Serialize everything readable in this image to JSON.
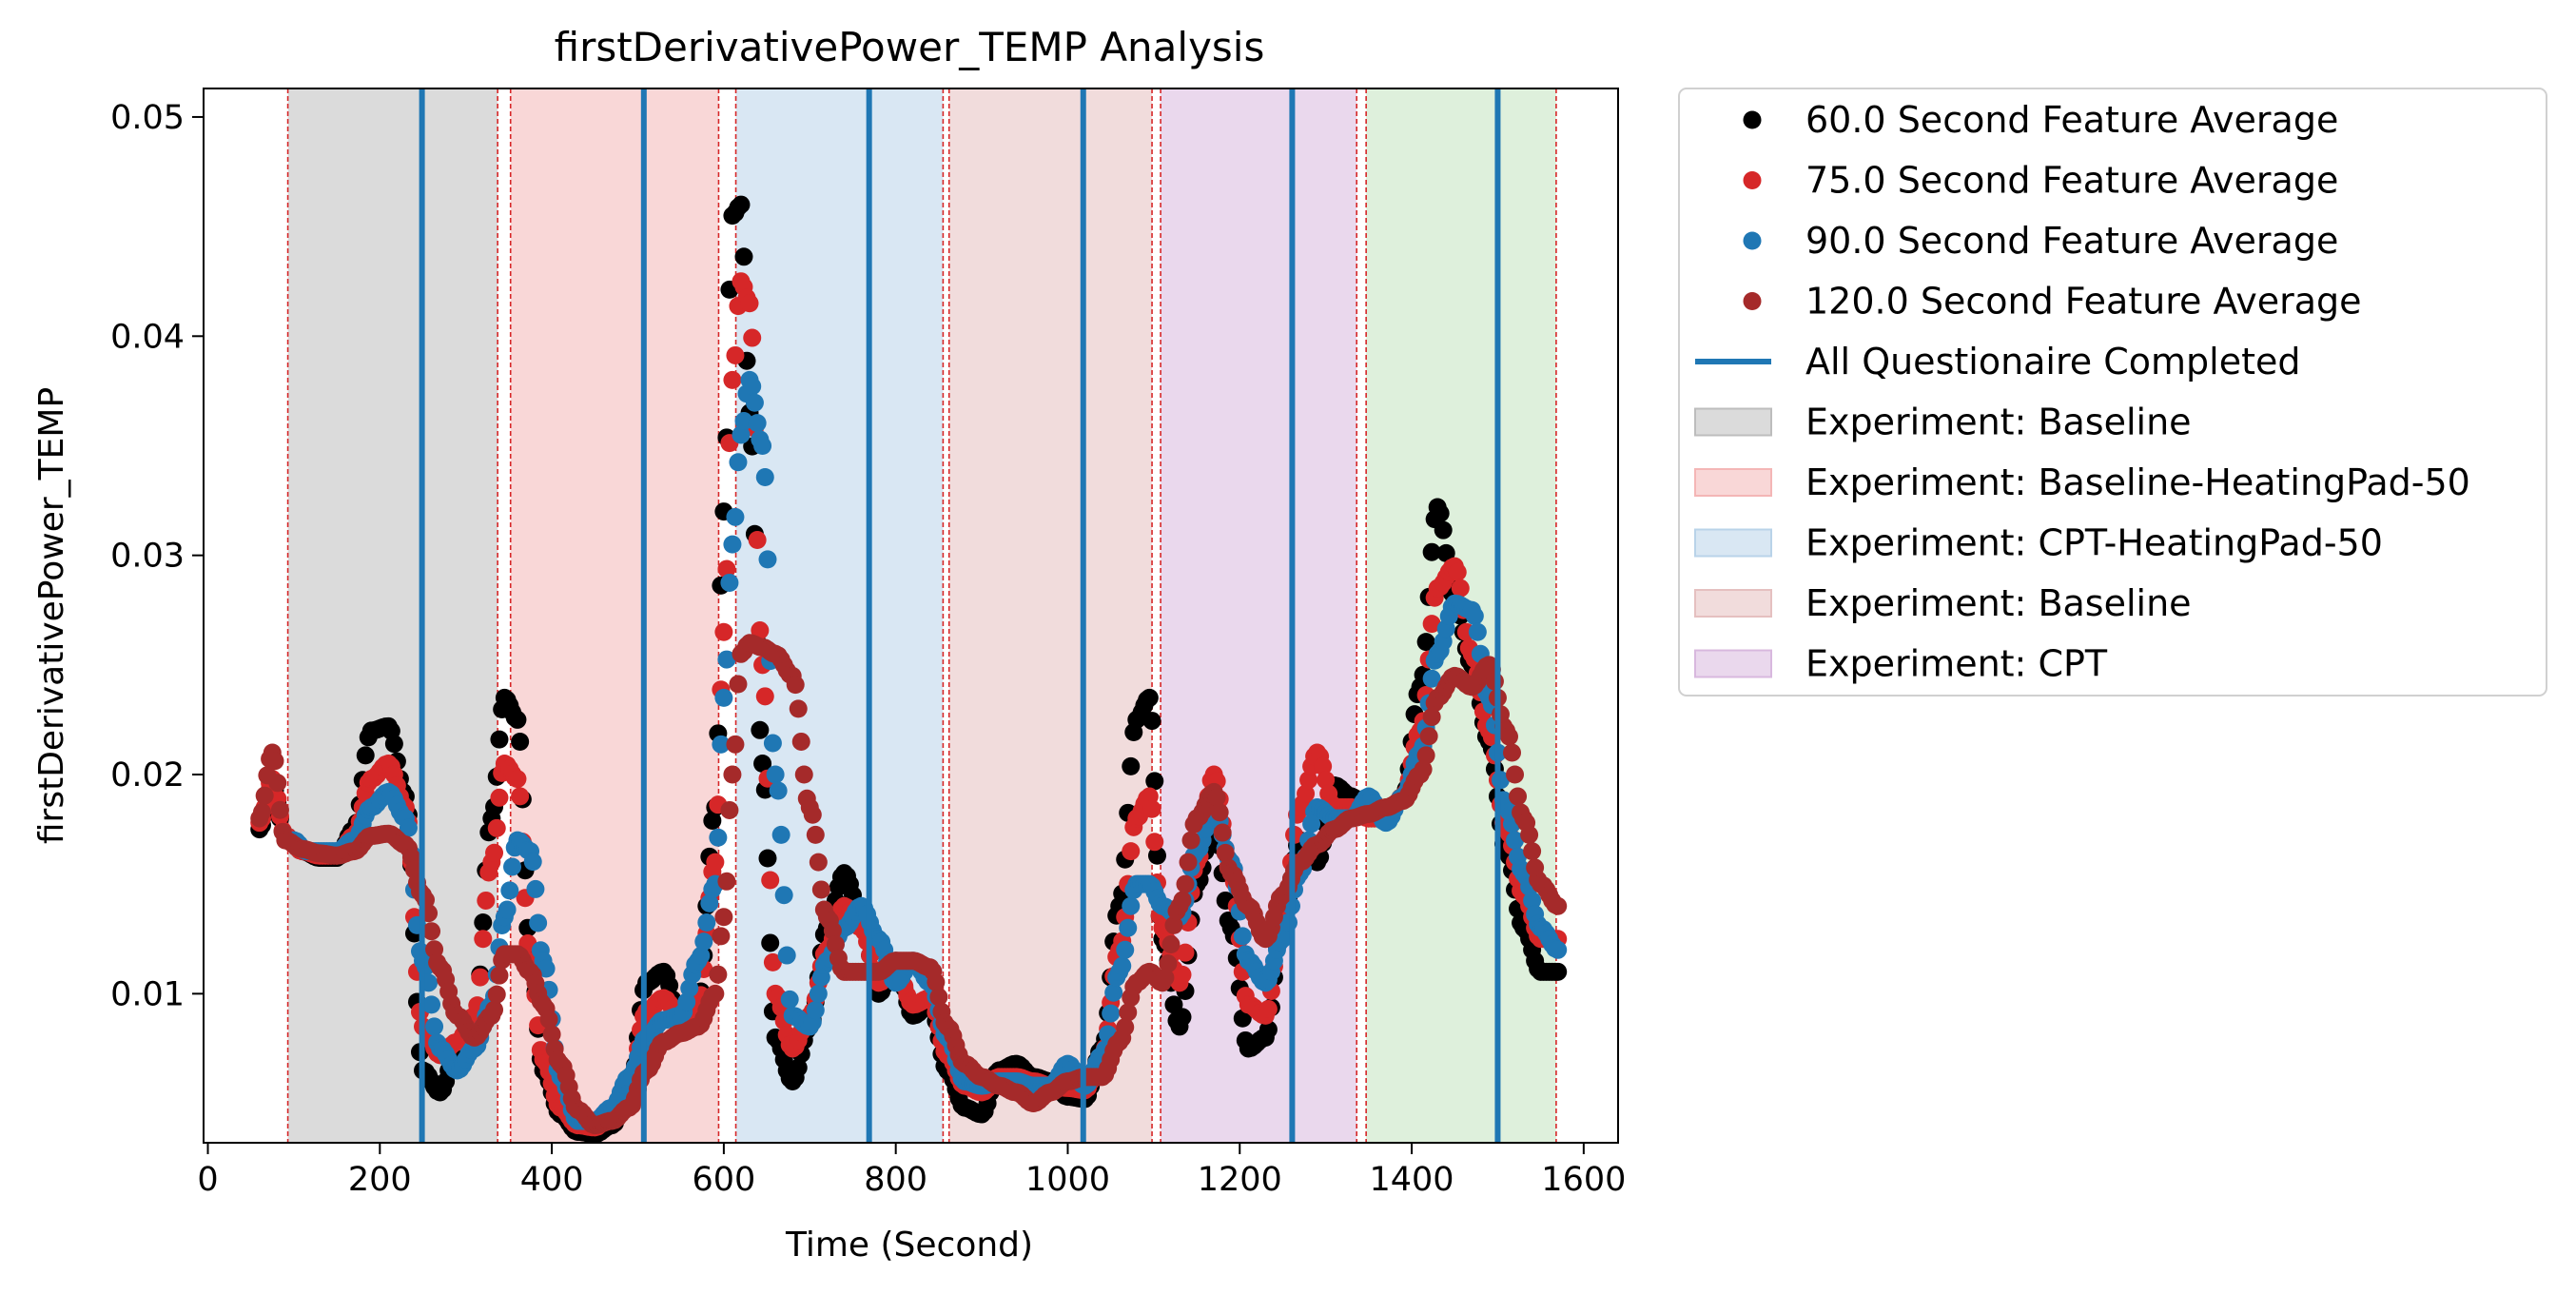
{
  "chart_data": {
    "type": "scatter",
    "title": "firstDerivativePower_TEMP Analysis",
    "xlabel": "Time (Second)",
    "ylabel": "firstDerivativePower_TEMP",
    "xlim": [
      -5,
      1640
    ],
    "ylim": [
      0.0032,
      0.0513
    ],
    "xticks": [
      0,
      200,
      400,
      600,
      800,
      1000,
      1200,
      1400,
      1600
    ],
    "xtick_labels": [
      "0",
      "200",
      "400",
      "600",
      "800",
      "1000",
      "1200",
      "1400",
      "1600"
    ],
    "yticks": [
      0.01,
      0.02,
      0.03,
      0.04,
      0.05
    ],
    "ytick_labels": [
      "0.01",
      "0.02",
      "0.03",
      "0.04",
      "0.05"
    ],
    "grid": false,
    "legend_position": "outside-right-top",
    "experiment_regions": [
      {
        "name": "Experiment: Baseline",
        "start": 93,
        "end": 337,
        "color": "#bdbdbd"
      },
      {
        "name": "Experiment: Baseline-HeatingPad-50",
        "start": 352,
        "end": 594,
        "color": "#f4b6b6"
      },
      {
        "name": "Experiment: CPT-HeatingPad-50",
        "start": 614,
        "end": 855,
        "color": "#b9d3e9"
      },
      {
        "name": "Experiment: Baseline",
        "start": 862,
        "end": 1098,
        "color": "#e5c0c0"
      },
      {
        "name": "Experiment: CPT",
        "start": 1108,
        "end": 1336,
        "color": "#d8b8de"
      },
      {
        "name": "",
        "start": 1347,
        "end": 1568,
        "color": "#c2e3c0"
      }
    ],
    "questionnaire_lines": {
      "name": "All Questionaire Completed",
      "color": "#1f77b4",
      "x": [
        249,
        507,
        769,
        1018,
        1261,
        1500
      ]
    },
    "boundary_lines_x": [
      93,
      337,
      352,
      594,
      614,
      855,
      862,
      1098,
      1108,
      1336,
      1347,
      1568
    ],
    "series": [
      {
        "name": "60.0 Second Feature Average",
        "color": "#000000",
        "x": [
          60,
          75,
          90,
          110,
          130,
          150,
          170,
          190,
          210,
          230,
          250,
          270,
          290,
          310,
          330,
          345,
          360,
          375,
          390,
          410,
          430,
          450,
          470,
          490,
          510,
          530,
          550,
          570,
          590,
          600,
          610,
          620,
          630,
          645,
          660,
          680,
          700,
          720,
          740,
          760,
          780,
          800,
          820,
          840,
          860,
          880,
          900,
          920,
          940,
          960,
          980,
          1000,
          1020,
          1040,
          1060,
          1080,
          1095,
          1110,
          1130,
          1150,
          1170,
          1190,
          1210,
          1230,
          1250,
          1270,
          1290,
          1310,
          1330,
          1350,
          1370,
          1390,
          1410,
          1430,
          1450,
          1470,
          1490,
          1510,
          1530,
          1550,
          1570
        ],
        "y": [
          0.0175,
          0.0195,
          0.0172,
          0.0165,
          0.0162,
          0.0162,
          0.0175,
          0.022,
          0.0222,
          0.019,
          0.0065,
          0.0055,
          0.0075,
          0.0085,
          0.018,
          0.0235,
          0.0225,
          0.012,
          0.0065,
          0.0045,
          0.0037,
          0.0036,
          0.004,
          0.0055,
          0.0105,
          0.011,
          0.0085,
          0.0095,
          0.0185,
          0.032,
          0.0455,
          0.046,
          0.0365,
          0.0205,
          0.008,
          0.006,
          0.0085,
          0.013,
          0.0155,
          0.0135,
          0.01,
          0.0115,
          0.009,
          0.0095,
          0.0065,
          0.0048,
          0.0045,
          0.0065,
          0.0068,
          0.0062,
          0.006,
          0.0053,
          0.0052,
          0.0075,
          0.014,
          0.0225,
          0.0235,
          0.0125,
          0.0085,
          0.015,
          0.018,
          0.013,
          0.0075,
          0.008,
          0.0135,
          0.017,
          0.016,
          0.0195,
          0.019,
          0.018,
          0.018,
          0.019,
          0.024,
          0.0322,
          0.028,
          0.025,
          0.0215,
          0.0165,
          0.013,
          0.011,
          0.011
        ]
      },
      {
        "name": "75.0 Second Feature Average",
        "color": "#d62728",
        "x": [
          60,
          75,
          90,
          110,
          130,
          150,
          170,
          190,
          210,
          230,
          250,
          270,
          290,
          310,
          330,
          345,
          360,
          375,
          390,
          410,
          430,
          450,
          470,
          490,
          510,
          530,
          550,
          570,
          590,
          600,
          610,
          620,
          630,
          645,
          660,
          680,
          700,
          720,
          740,
          760,
          780,
          800,
          820,
          840,
          860,
          880,
          900,
          920,
          940,
          960,
          980,
          1000,
          1020,
          1040,
          1060,
          1080,
          1095,
          1110,
          1130,
          1150,
          1170,
          1190,
          1210,
          1230,
          1250,
          1270,
          1290,
          1310,
          1330,
          1350,
          1370,
          1390,
          1410,
          1430,
          1450,
          1470,
          1490,
          1510,
          1530,
          1550,
          1570
        ],
        "y": [
          0.0178,
          0.0198,
          0.0172,
          0.0165,
          0.0163,
          0.0163,
          0.0172,
          0.0198,
          0.0205,
          0.0185,
          0.0085,
          0.0072,
          0.0078,
          0.009,
          0.016,
          0.0205,
          0.0198,
          0.0115,
          0.007,
          0.0048,
          0.004,
          0.0039,
          0.0045,
          0.0058,
          0.0092,
          0.0098,
          0.0088,
          0.0095,
          0.016,
          0.0265,
          0.038,
          0.0425,
          0.0415,
          0.025,
          0.01,
          0.0075,
          0.009,
          0.012,
          0.014,
          0.013,
          0.0105,
          0.0112,
          0.0095,
          0.0098,
          0.0072,
          0.0058,
          0.0055,
          0.0062,
          0.0062,
          0.006,
          0.0058,
          0.0057,
          0.0056,
          0.0072,
          0.012,
          0.018,
          0.019,
          0.013,
          0.0105,
          0.016,
          0.02,
          0.0155,
          0.0095,
          0.009,
          0.0135,
          0.0185,
          0.021,
          0.0185,
          0.0185,
          0.018,
          0.018,
          0.019,
          0.022,
          0.0285,
          0.0295,
          0.0255,
          0.022,
          0.0175,
          0.0145,
          0.0125,
          0.0125
        ]
      },
      {
        "name": "90.0 Second Feature Average",
        "color": "#1f77b4",
        "x": [
          100,
          115,
          130,
          150,
          170,
          190,
          210,
          230,
          250,
          270,
          290,
          310,
          330,
          345,
          360,
          375,
          390,
          410,
          430,
          450,
          470,
          490,
          510,
          530,
          550,
          570,
          590,
          600,
          610,
          620,
          630,
          645,
          660,
          680,
          700,
          720,
          740,
          760,
          780,
          800,
          820,
          840,
          860,
          880,
          900,
          920,
          940,
          960,
          980,
          1000,
          1020,
          1040,
          1060,
          1080,
          1095,
          1110,
          1130,
          1150,
          1170,
          1190,
          1210,
          1230,
          1250,
          1270,
          1290,
          1310,
          1330,
          1350,
          1370,
          1390,
          1410,
          1430,
          1450,
          1470,
          1490,
          1510,
          1530,
          1550,
          1570
        ],
        "y": [
          0.017,
          0.0165,
          0.0165,
          0.0165,
          0.017,
          0.0185,
          0.0192,
          0.018,
          0.0115,
          0.0075,
          0.0065,
          0.0075,
          0.0095,
          0.0135,
          0.017,
          0.0165,
          0.0115,
          0.0062,
          0.0042,
          0.0042,
          0.0048,
          0.0062,
          0.008,
          0.0088,
          0.009,
          0.0115,
          0.015,
          0.0235,
          0.0305,
          0.0355,
          0.038,
          0.035,
          0.02,
          0.009,
          0.0085,
          0.0115,
          0.013,
          0.014,
          0.0125,
          0.0105,
          0.0115,
          0.0105,
          0.008,
          0.006,
          0.0058,
          0.006,
          0.006,
          0.0058,
          0.0058,
          0.0068,
          0.0058,
          0.0072,
          0.011,
          0.015,
          0.015,
          0.014,
          0.0135,
          0.0165,
          0.0185,
          0.016,
          0.0115,
          0.0105,
          0.0125,
          0.0155,
          0.0185,
          0.018,
          0.018,
          0.019,
          0.0178,
          0.019,
          0.021,
          0.0255,
          0.0278,
          0.0275,
          0.0235,
          0.0185,
          0.0155,
          0.013,
          0.012
        ]
      },
      {
        "name": "120.0 Second Feature Average",
        "color": "#a52a2a",
        "x": [
          60,
          75,
          90,
          110,
          130,
          150,
          170,
          190,
          210,
          230,
          250,
          270,
          290,
          310,
          330,
          345,
          360,
          375,
          390,
          410,
          430,
          450,
          470,
          490,
          510,
          530,
          550,
          570,
          590,
          600,
          610,
          620,
          630,
          645,
          660,
          680,
          700,
          720,
          740,
          760,
          780,
          800,
          820,
          840,
          860,
          880,
          900,
          920,
          940,
          960,
          980,
          1000,
          1020,
          1040,
          1060,
          1080,
          1095,
          1110,
          1130,
          1150,
          1170,
          1190,
          1210,
          1230,
          1250,
          1270,
          1290,
          1310,
          1330,
          1350,
          1370,
          1390,
          1410,
          1430,
          1450,
          1470,
          1490,
          1510,
          1530,
          1550,
          1570
        ],
        "y": [
          0.018,
          0.021,
          0.017,
          0.0166,
          0.0164,
          0.0163,
          0.0165,
          0.0172,
          0.0173,
          0.0168,
          0.0145,
          0.0112,
          0.009,
          0.008,
          0.009,
          0.0118,
          0.0118,
          0.011,
          0.0095,
          0.0068,
          0.0047,
          0.004,
          0.0042,
          0.0048,
          0.0065,
          0.0078,
          0.0082,
          0.0085,
          0.01,
          0.0135,
          0.02,
          0.0255,
          0.026,
          0.0258,
          0.0255,
          0.0245,
          0.0185,
          0.0135,
          0.011,
          0.011,
          0.011,
          0.0115,
          0.0115,
          0.0112,
          0.0085,
          0.0068,
          0.0062,
          0.0058,
          0.0055,
          0.005,
          0.0055,
          0.006,
          0.0062,
          0.0062,
          0.0078,
          0.0105,
          0.011,
          0.0105,
          0.014,
          0.018,
          0.0192,
          0.0155,
          0.014,
          0.0125,
          0.0145,
          0.016,
          0.0168,
          0.0175,
          0.018,
          0.0182,
          0.0185,
          0.0188,
          0.02,
          0.0235,
          0.0245,
          0.024,
          0.025,
          0.022,
          0.018,
          0.015,
          0.014
        ]
      }
    ]
  },
  "legend": {
    "items": [
      {
        "label": "60.0 Second Feature Average",
        "kind": "marker",
        "color": "#000000"
      },
      {
        "label": "75.0 Second Feature Average",
        "kind": "marker",
        "color": "#d62728"
      },
      {
        "label": "90.0 Second Feature Average",
        "kind": "marker",
        "color": "#1f77b4"
      },
      {
        "label": "120.0 Second Feature Average",
        "kind": "marker",
        "color": "#a52a2a"
      },
      {
        "label": "All Questionaire Completed",
        "kind": "line",
        "color": "#1f77b4"
      },
      {
        "label": "Experiment: Baseline",
        "kind": "patch",
        "color": "#bdbdbd"
      },
      {
        "label": "Experiment: Baseline-HeatingPad-50",
        "kind": "patch",
        "color": "#f4b6b6"
      },
      {
        "label": "Experiment: CPT-HeatingPad-50",
        "kind": "patch",
        "color": "#b9d3e9"
      },
      {
        "label": "Experiment: Baseline",
        "kind": "patch",
        "color": "#e5c0c0"
      },
      {
        "label": "Experiment: CPT",
        "kind": "patch",
        "color": "#d8b8de"
      }
    ]
  }
}
